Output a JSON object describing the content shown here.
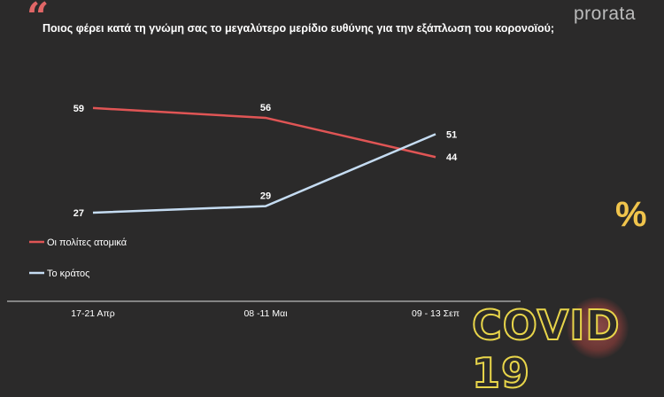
{
  "header": {
    "quote_icon": "quote-icon",
    "title": "Ποιος φέρει κατά τη γνώμη σας το μεγαλύτερο μερίδιο ευθύνης για την εξάπλωση του κορονοϊού;",
    "brand": "prorata",
    "percent": "%",
    "badge": "COVID 19"
  },
  "chart_data": {
    "type": "line",
    "title": "Ποιος φέρει κατά τη γνώμη σας το μεγαλύτερο μερίδιο ευθύνης για την εξάπλωση του κορονοϊού;",
    "categories": [
      "17-21 Απρ",
      "08 -11 Μαι",
      "09 - 13 Σεπ"
    ],
    "series": [
      {
        "name": "Οι πολίτες ατομικά",
        "values": [
          59,
          56,
          44
        ],
        "color": "#e05555"
      },
      {
        "name": "Το κράτος",
        "values": [
          27,
          29,
          51
        ],
        "color": "#c5dcf2"
      }
    ],
    "ylabel": "%",
    "legend": "left",
    "grid": false
  }
}
